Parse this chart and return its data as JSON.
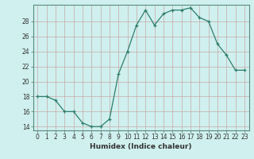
{
  "x": [
    0,
    1,
    2,
    3,
    4,
    5,
    6,
    7,
    8,
    9,
    10,
    11,
    12,
    13,
    14,
    15,
    16,
    17,
    18,
    19,
    20,
    21,
    22,
    23
  ],
  "y": [
    18,
    18,
    17.5,
    16,
    16,
    14.5,
    14,
    14,
    15,
    21,
    24,
    27.5,
    29.5,
    27.5,
    29,
    29.5,
    29.5,
    29.8,
    28.5,
    28,
    25,
    23.5,
    21.5,
    21.5
  ],
  "line_color": "#2e7d6b",
  "marker": "+",
  "background_color": "#cff0ee",
  "grid_color_major": "#c8a8a8",
  "xlabel": "Humidex (Indice chaleur)",
  "xlim": [
    -0.5,
    23.5
  ],
  "ylim": [
    13.5,
    30.2
  ],
  "yticks": [
    14,
    16,
    18,
    20,
    22,
    24,
    26,
    28
  ],
  "xticks": [
    0,
    1,
    2,
    3,
    4,
    5,
    6,
    7,
    8,
    9,
    10,
    11,
    12,
    13,
    14,
    15,
    16,
    17,
    18,
    19,
    20,
    21,
    22,
    23
  ],
  "xtick_labels": [
    "0",
    "1",
    "2",
    "3",
    "4",
    "5",
    "6",
    "7",
    "8",
    "9",
    "10",
    "11",
    "12",
    "13",
    "14",
    "15",
    "16",
    "17",
    "18",
    "19",
    "20",
    "21",
    "22",
    "23"
  ],
  "label_fontsize": 6.5,
  "tick_fontsize": 5.5,
  "line_width": 0.9,
  "marker_size": 3.5,
  "spine_color": "#5a8a80"
}
